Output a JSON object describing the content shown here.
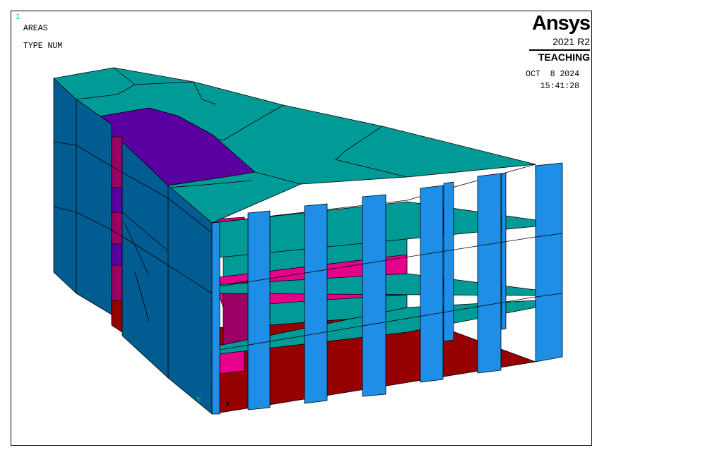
{
  "window_number": "1",
  "plot_labels": {
    "line1": "AREAS",
    "line2": "TYPE NUM"
  },
  "brand": {
    "name": "Ansys",
    "version": "2021 R2",
    "edition": "TEACHING"
  },
  "timestamp": {
    "date": "OCT  8 2024",
    "time": "15:41:28"
  },
  "triad": {
    "y": "Y",
    "x": "X"
  },
  "colors": {
    "teal": "#009b96",
    "blue_side": "#005c91",
    "light_blue": "#1e8ee6",
    "purple": "#5a00a0",
    "magenta": "#e6008c",
    "dark_magenta": "#9b0064",
    "dark_red": "#960000",
    "edge": "#000000"
  }
}
